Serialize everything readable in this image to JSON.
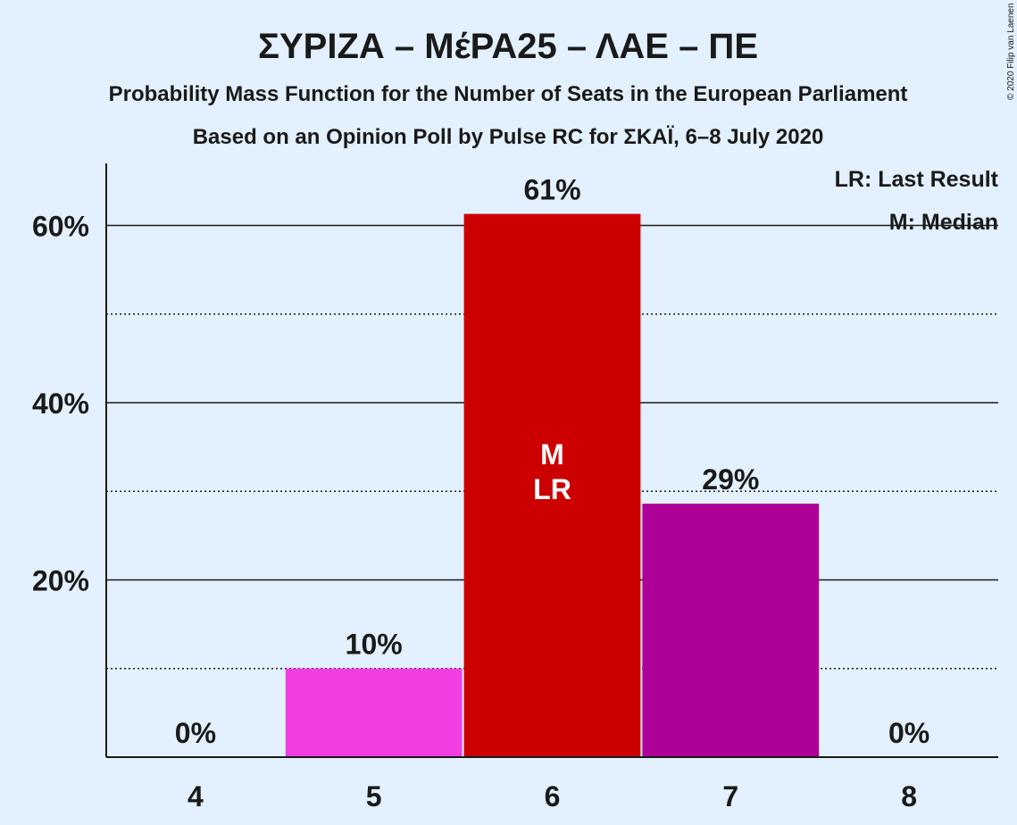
{
  "chart_data": {
    "type": "bar",
    "title": "ΣΥΡΙΖΑ – ΜέΡΑ25 – ΛΑΕ – ΠΕ",
    "subtitle": "Probability Mass Function for the Number of Seats in the European Parliament",
    "subtitle2": "Based on an Opinion Poll by Pulse RC for ΣΚΑΪ, 6–8 July 2020",
    "copyright": "© 2020 Filip van Laenen",
    "categories": [
      "4",
      "5",
      "6",
      "7",
      "8"
    ],
    "values": [
      0,
      10,
      61.3,
      28.6,
      0
    ],
    "value_labels": [
      "0%",
      "10%",
      "61%",
      "29%",
      "0%"
    ],
    "bar_colors": [
      "#f03ee0",
      "#f03ee0",
      "#cc0000",
      "#ad0096",
      "#f03ee0"
    ],
    "y_ticks": [
      {
        "value": 20,
        "label": "20%"
      },
      {
        "value": 40,
        "label": "40%"
      },
      {
        "value": 60,
        "label": "60%"
      }
    ],
    "minor_grid": [
      10,
      30,
      50
    ],
    "ylim": [
      0,
      67
    ],
    "xlabel": "",
    "ylabel": "",
    "median_category": "6",
    "last_result_category": "6",
    "median_marker": "M",
    "last_result_marker": "LR",
    "legend": {
      "placement": "top-right",
      "last_result": "LR: Last Result",
      "median": "M: Median"
    },
    "grid": true
  }
}
